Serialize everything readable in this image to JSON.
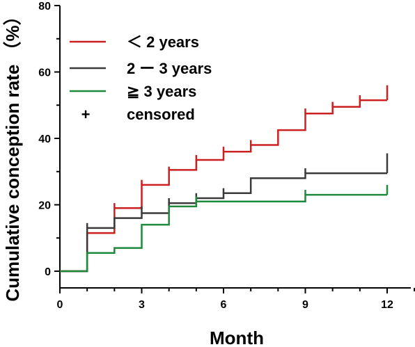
{
  "chart_data": {
    "type": "line",
    "subtype": "step",
    "title": "",
    "xlabel": "Month",
    "ylabel": "Cumulative conception rate （%）",
    "xlim": [
      0,
      12
    ],
    "ylim": [
      0,
      80
    ],
    "xticks": [
      0,
      3,
      6,
      9,
      12
    ],
    "yticks": [
      0,
      20,
      40,
      60,
      80
    ],
    "grid": false,
    "legend_position": "top-left",
    "series": [
      {
        "name": "＜  2 years",
        "color": "#cc1f1f",
        "steps": [
          [
            0,
            0
          ],
          [
            1,
            11.5
          ],
          [
            2,
            19
          ],
          [
            3,
            26
          ],
          [
            4,
            30.5
          ],
          [
            5,
            33.5
          ],
          [
            6,
            36
          ],
          [
            7,
            38
          ],
          [
            8,
            42.5
          ],
          [
            9,
            47.5
          ],
          [
            10,
            49.5
          ],
          [
            11,
            51.5
          ],
          [
            12,
            51.5
          ]
        ],
        "censored": [
          2,
          3,
          4,
          5,
          6,
          7,
          9,
          10,
          11,
          12
        ],
        "censor_heights": [
          20.5,
          27.5,
          31.5,
          35,
          37.5,
          39.5,
          49,
          51,
          53,
          56
        ]
      },
      {
        "name": "2 ー 3 years",
        "color": "#3a3a3a",
        "steps": [
          [
            0,
            0
          ],
          [
            1,
            13
          ],
          [
            2,
            16
          ],
          [
            3,
            17.5
          ],
          [
            4,
            20.5
          ],
          [
            5,
            22
          ],
          [
            6,
            23.5
          ],
          [
            7,
            28
          ],
          [
            8,
            28
          ],
          [
            9,
            29.5
          ],
          [
            12,
            29.5
          ]
        ],
        "censored": [
          1,
          3,
          4,
          5,
          6,
          9,
          12
        ],
        "censor_heights": [
          14.5,
          19.5,
          22,
          23.5,
          25,
          31,
          35.5
        ]
      },
      {
        "name": "≧ 3 years",
        "color": "#1f8a3c",
        "steps": [
          [
            0,
            0
          ],
          [
            1,
            5.5
          ],
          [
            2,
            7
          ],
          [
            3,
            14
          ],
          [
            4,
            19.5
          ],
          [
            5,
            21
          ],
          [
            9,
            23
          ],
          [
            12,
            23
          ]
        ],
        "censored": [
          5,
          9,
          12
        ],
        "censor_heights": [
          22.5,
          24.5,
          26
        ]
      }
    ],
    "legend": {
      "censored_marker": "+",
      "censored_label": "censored"
    }
  }
}
